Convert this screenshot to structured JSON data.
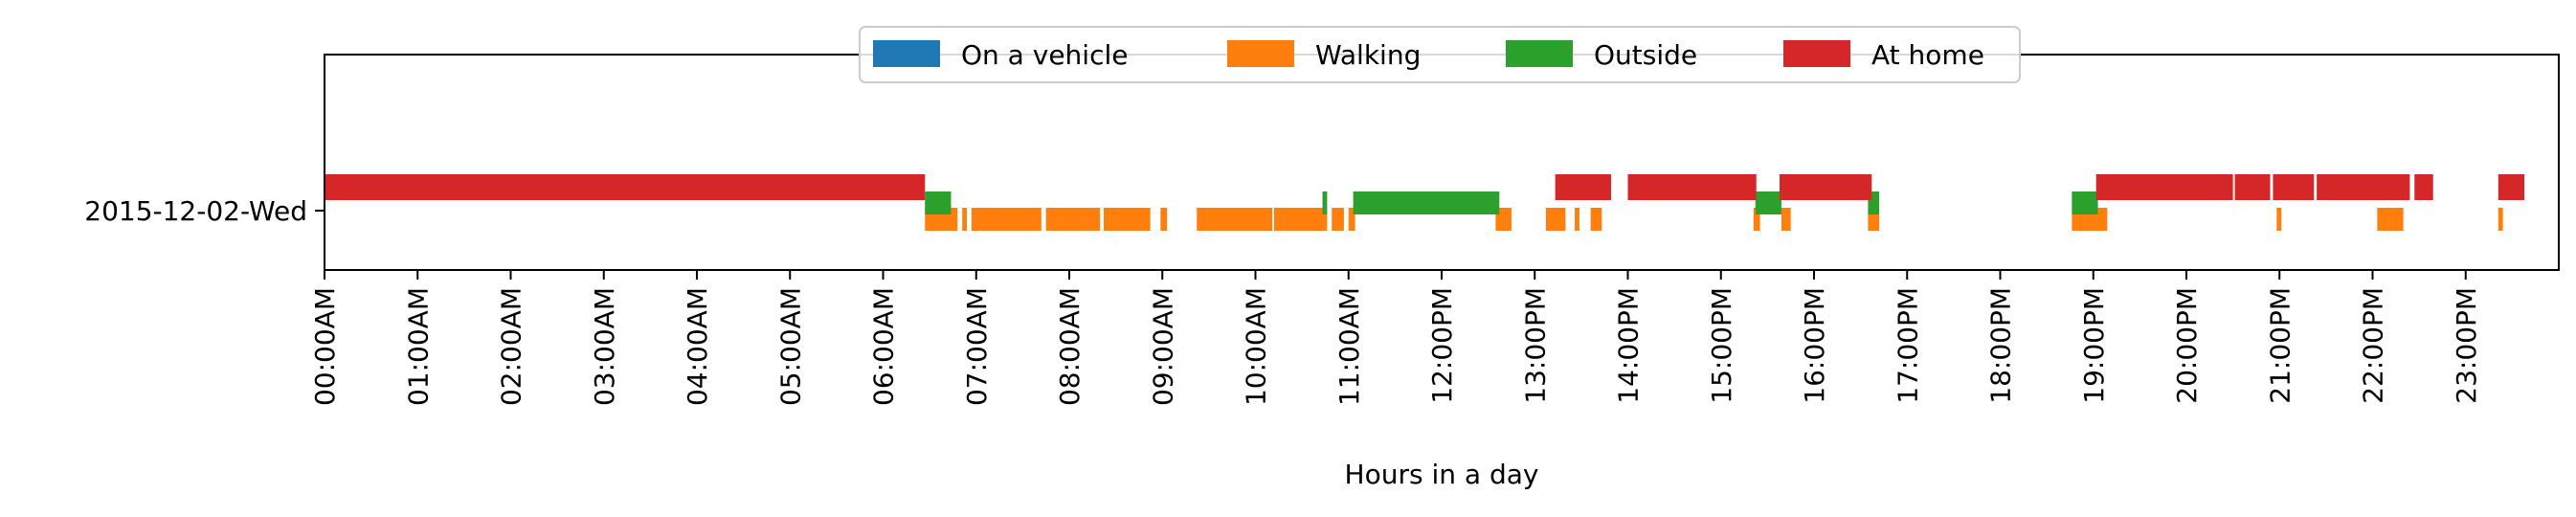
{
  "chart_data": {
    "type": "timeline",
    "xlabel": "Hours in a day",
    "xlim_hours": [
      0,
      24
    ],
    "xticks": [
      "00:00AM",
      "01:00AM",
      "02:00AM",
      "03:00AM",
      "04:00AM",
      "05:00AM",
      "06:00AM",
      "07:00AM",
      "08:00AM",
      "09:00AM",
      "10:00AM",
      "11:00AM",
      "12:00PM",
      "13:00PM",
      "14:00PM",
      "15:00PM",
      "16:00PM",
      "17:00PM",
      "18:00PM",
      "19:00PM",
      "20:00PM",
      "21:00PM",
      "22:00PM",
      "23:00PM"
    ],
    "rows": [
      "2015-12-02-Wed"
    ],
    "legend": {
      "position": "top-center",
      "entries": [
        {
          "name": "On a vehicle",
          "color": "#1f77b4"
        },
        {
          "name": "Walking",
          "color": "#ff7f0e"
        },
        {
          "name": "Outside",
          "color": "#2ca02c"
        },
        {
          "name": "At home",
          "color": "#d62728"
        }
      ]
    },
    "series": [
      {
        "name": "On a vehicle",
        "color": "#1f77b4",
        "intervals": []
      },
      {
        "name": "Walking",
        "color": "#ff7f0e",
        "intervals": [
          [
            6.45,
            6.8
          ],
          [
            6.85,
            6.9
          ],
          [
            6.95,
            7.7
          ],
          [
            7.75,
            8.33
          ],
          [
            8.37,
            8.87
          ],
          [
            8.98,
            9.05
          ],
          [
            9.37,
            10.18
          ],
          [
            10.2,
            10.77
          ],
          [
            10.82,
            10.95
          ],
          [
            11.0,
            11.07
          ],
          [
            12.58,
            12.75
          ],
          [
            13.12,
            13.33
          ],
          [
            13.43,
            13.48
          ],
          [
            13.6,
            13.72
          ],
          [
            15.35,
            15.42
          ],
          [
            15.65,
            15.75
          ],
          [
            16.58,
            16.7
          ],
          [
            18.77,
            19.15
          ],
          [
            20.97,
            21.02
          ],
          [
            22.05,
            22.33
          ],
          [
            23.35,
            23.4
          ]
        ]
      },
      {
        "name": "Outside",
        "color": "#2ca02c",
        "intervals": [
          [
            6.45,
            6.73
          ],
          [
            10.72,
            10.77
          ],
          [
            11.05,
            12.62
          ],
          [
            15.37,
            15.65
          ],
          [
            16.58,
            16.7
          ],
          [
            18.77,
            19.05
          ]
        ]
      },
      {
        "name": "At home",
        "color": "#d62728",
        "intervals": [
          [
            0.0,
            6.45
          ],
          [
            13.22,
            13.82
          ],
          [
            14.0,
            15.38
          ],
          [
            15.63,
            16.62
          ],
          [
            19.03,
            20.5
          ],
          [
            20.52,
            20.9
          ],
          [
            20.93,
            21.37
          ],
          [
            21.4,
            22.4
          ],
          [
            22.45,
            22.65
          ],
          [
            23.35,
            23.63
          ]
        ]
      }
    ]
  }
}
